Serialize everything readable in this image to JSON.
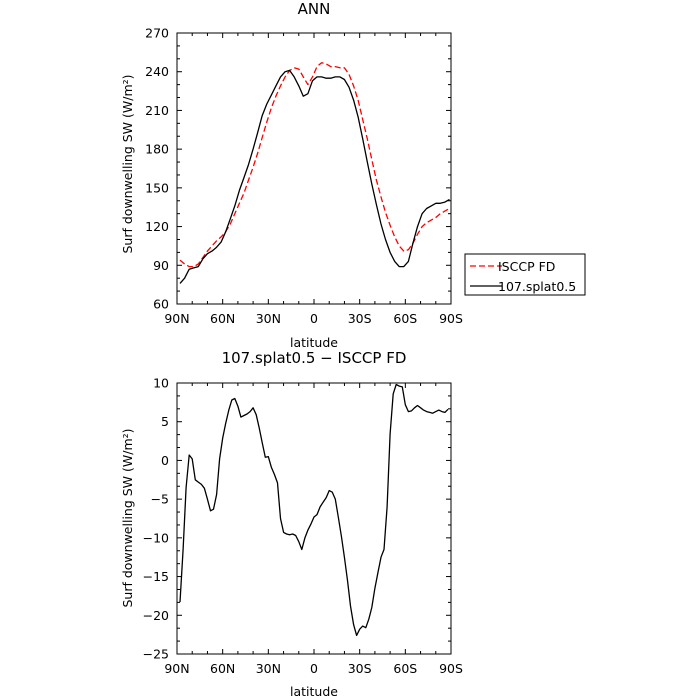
{
  "chart_data": [
    {
      "type": "line",
      "title": "ANN",
      "xlabel": "latitude",
      "ylabel": "Surf downwelling SW (W/m²)",
      "ylim": [
        60,
        270
      ],
      "yticks": [
        60,
        90,
        120,
        150,
        180,
        210,
        240,
        270
      ],
      "xlim": [
        90,
        -90
      ],
      "xticks": [
        90,
        60,
        30,
        0,
        -30,
        -60,
        -90
      ],
      "xticklabels": [
        "90N",
        "60N",
        "30N",
        "0",
        "30S",
        "60S",
        "90S"
      ],
      "legend": "right",
      "series": [
        {
          "name": "ISCCP FD",
          "color": "#ff0000",
          "dash": "dashed",
          "x": [
            88,
            85,
            82,
            79,
            76,
            73,
            70,
            67,
            64,
            61,
            58,
            55,
            52,
            49,
            46,
            43,
            40,
            37,
            34,
            31,
            28,
            25,
            22,
            19,
            16,
            13,
            10,
            7,
            4,
            1,
            -2,
            -5,
            -8,
            -11,
            -14,
            -17,
            -20,
            -23,
            -26,
            -29,
            -32,
            -35,
            -38,
            -41,
            -44,
            -47,
            -50,
            -53,
            -56,
            -59,
            -62,
            -65,
            -68,
            -71,
            -74,
            -77,
            -80,
            -83,
            -86,
            -89
          ],
          "y": [
            94,
            91,
            89,
            89,
            91,
            96,
            101,
            105,
            109,
            112,
            116,
            122,
            130,
            138,
            146,
            156,
            166,
            177,
            189,
            201,
            212,
            221,
            229,
            236,
            241,
            243,
            242,
            236,
            230,
            236,
            244,
            247,
            246,
            244,
            244,
            243,
            243,
            238,
            229,
            218,
            203,
            188,
            172,
            156,
            143,
            131,
            121,
            112,
            105,
            101,
            102,
            107,
            114,
            120,
            123,
            125,
            127,
            130,
            132,
            134
          ]
        },
        {
          "name": "107.splat0.5",
          "color": "#000000",
          "dash": "solid",
          "x": [
            88,
            85,
            82,
            79,
            76,
            73,
            70,
            67,
            64,
            61,
            58,
            55,
            52,
            49,
            46,
            43,
            40,
            37,
            34,
            31,
            28,
            25,
            22,
            19,
            16,
            13,
            10,
            7,
            4,
            1,
            -2,
            -5,
            -8,
            -11,
            -14,
            -17,
            -20,
            -23,
            -26,
            -29,
            -32,
            -35,
            -38,
            -41,
            -44,
            -47,
            -50,
            -53,
            -56,
            -59,
            -62,
            -65,
            -68,
            -71,
            -74,
            -77,
            -80,
            -83,
            -86,
            -89
          ],
          "y": [
            76,
            80,
            87,
            88,
            89,
            95,
            99,
            101,
            104,
            108,
            116,
            126,
            136,
            148,
            158,
            168,
            180,
            193,
            206,
            215,
            222,
            229,
            236,
            240,
            241,
            236,
            229,
            221,
            223,
            233,
            236,
            236,
            235,
            235,
            236,
            236,
            234,
            228,
            218,
            205,
            188,
            170,
            153,
            137,
            122,
            110,
            100,
            93,
            89,
            89,
            93,
            107,
            120,
            130,
            134,
            136,
            138,
            138,
            139,
            141
          ]
        }
      ]
    },
    {
      "type": "line",
      "title": "107.splat0.5 − ISCCP FD",
      "xlabel": "latitude",
      "ylabel": "Surf downwelling SW (W/m²)",
      "ylim": [
        -25,
        10
      ],
      "yticks": [
        -25,
        -20,
        -15,
        -10,
        -5,
        0,
        5,
        10
      ],
      "ytick_labels": [
        "−25",
        "−20",
        "−15",
        "−10",
        "−5",
        "0",
        "5",
        "10"
      ],
      "xlim": [
        90,
        -90
      ],
      "xticks": [
        90,
        60,
        30,
        0,
        -30,
        -60,
        -90
      ],
      "xticklabels": [
        "90N",
        "60N",
        "30N",
        "0",
        "30S",
        "60S",
        "90S"
      ],
      "series": [
        {
          "color": "#000000",
          "dash": "solid",
          "x": [
            88,
            86,
            84,
            82,
            80,
            78,
            76,
            74,
            72,
            70,
            68,
            66,
            64,
            62,
            60,
            58,
            56,
            54,
            52,
            50,
            48,
            46,
            44,
            42,
            40,
            38,
            36,
            34,
            32,
            30,
            28,
            26,
            24,
            22,
            20,
            18,
            16,
            14,
            12,
            10,
            8,
            6,
            4,
            2,
            0,
            -2,
            -4,
            -6,
            -8,
            -10,
            -12,
            -14,
            -16,
            -18,
            -20,
            -22,
            -24,
            -26,
            -28,
            -30,
            -32,
            -34,
            -36,
            -38,
            -40,
            -42,
            -44,
            -46,
            -48,
            -50,
            -52,
            -54,
            -56,
            -58,
            -60,
            -62,
            -64,
            -66,
            -68,
            -70,
            -72,
            -74,
            -76,
            -78,
            -80,
            -82,
            -84,
            -86,
            -88
          ],
          "y": [
            -18.3,
            -11.5,
            -3.5,
            0.7,
            0.2,
            -2.5,
            -2.8,
            -3.1,
            -3.6,
            -5.0,
            -6.5,
            -6.3,
            -4.4,
            0.2,
            2.9,
            4.8,
            6.5,
            7.8,
            8.0,
            7.0,
            5.6,
            5.8,
            6.0,
            6.3,
            6.8,
            5.9,
            4.2,
            2.3,
            0.4,
            0.5,
            -0.9,
            -1.8,
            -2.9,
            -7.5,
            -9.3,
            -9.5,
            -9.6,
            -9.5,
            -9.7,
            -10.5,
            -11.5,
            -10.0,
            -9.0,
            -8.2,
            -7.3,
            -7.0,
            -6.0,
            -5.4,
            -4.8,
            -3.9,
            -4.1,
            -5.0,
            -7.4,
            -9.8,
            -12.5,
            -15.5,
            -18.8,
            -21.2,
            -22.6,
            -21.8,
            -21.4,
            -21.6,
            -20.5,
            -19.0,
            -16.5,
            -14.5,
            -12.5,
            -11.5,
            -6.0,
            3.4,
            8.6,
            9.8,
            9.6,
            9.5,
            7.2,
            6.3,
            6.4,
            6.8,
            7.1,
            6.8,
            6.5,
            6.3,
            6.2,
            6.1,
            6.3,
            6.5,
            6.3,
            6.2,
            6.6
          ]
        }
      ]
    }
  ]
}
